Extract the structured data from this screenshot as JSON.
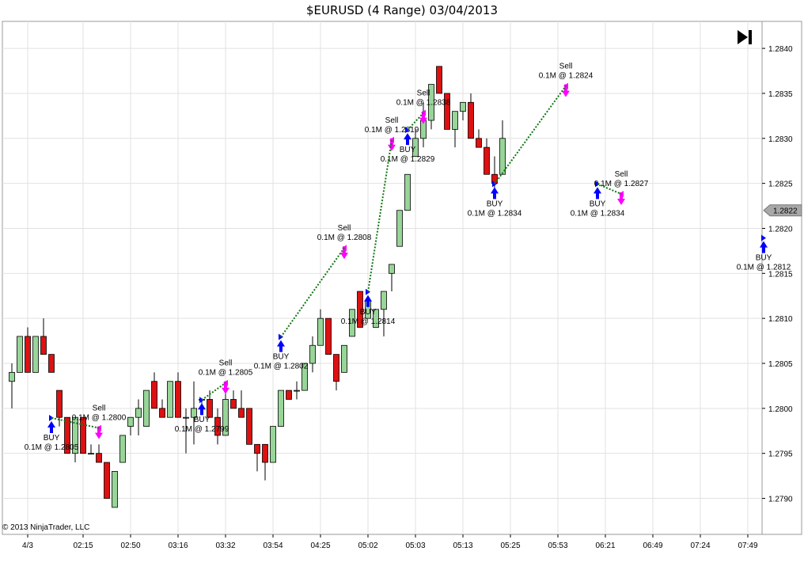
{
  "title": "$EURUSD (4 Range)  03/04/2013",
  "copyright": "© 2013 NinjaTrader, LLC",
  "colors": {
    "up": "#98d598",
    "down": "#dd1111",
    "grid": "#e2e2e2",
    "buy_arrow": "#0000ff",
    "sell_arrow": "#ff00ff",
    "win_line": "#117711",
    "loss_line": "#cc1144"
  },
  "chart_data": {
    "type": "candlestick",
    "symbol": "$EURUSD",
    "bar_type": "4 Range",
    "date": "03/04/2013",
    "ylim": [
      1.2786,
      1.2843
    ],
    "yticks": [
      "1.2840",
      "1.2835",
      "1.2830",
      "1.2825",
      "1.2820",
      "1.2815",
      "1.2810",
      "1.2805",
      "1.2800",
      "1.2795",
      "1.2790"
    ],
    "last_price": "1.2822",
    "x_tick_labels": [
      {
        "bar": 2,
        "label": "4/3"
      },
      {
        "bar": 9,
        "label": "02:15"
      },
      {
        "bar": 15,
        "label": "02:50"
      },
      {
        "bar": 21,
        "label": "03:16"
      },
      {
        "bar": 27,
        "label": "03:32"
      },
      {
        "bar": 33,
        "label": "03:54"
      },
      {
        "bar": 39,
        "label": "04:25"
      },
      {
        "bar": 45,
        "label": "05:02"
      },
      {
        "bar": 51,
        "label": "05:03"
      },
      {
        "bar": 57,
        "label": "05:13"
      },
      {
        "bar": 63,
        "label": "05:25"
      },
      {
        "bar": 69,
        "label": "05:53"
      },
      {
        "bar": 75,
        "label": "06:21"
      },
      {
        "bar": 81,
        "label": "06:49"
      },
      {
        "bar": 87,
        "label": "07:24"
      },
      {
        "bar": 93,
        "label": "07:49"
      }
    ],
    "bars": [
      [
        1.2803,
        1.2805,
        1.28,
        1.2804
      ],
      [
        1.2804,
        1.2808,
        1.2804,
        1.2808
      ],
      [
        1.2808,
        1.2809,
        1.2804,
        1.2804
      ],
      [
        1.2804,
        1.2808,
        1.2804,
        1.2808
      ],
      [
        1.2808,
        1.281,
        1.2806,
        1.2806
      ],
      [
        1.2806,
        1.2806,
        1.2804,
        1.2804
      ],
      [
        1.2802,
        1.2802,
        1.2798,
        1.2799
      ],
      [
        1.2799,
        1.2799,
        1.2795,
        1.2795
      ],
      [
        1.2795,
        1.2799,
        1.2794,
        1.2799
      ],
      [
        1.2799,
        1.2799,
        1.2795,
        1.2795
      ],
      [
        1.2795,
        1.2796,
        1.2795,
        1.2795
      ],
      [
        1.2795,
        1.2796,
        1.2794,
        1.2794
      ],
      [
        1.2794,
        1.2794,
        1.279,
        1.279
      ],
      [
        1.2789,
        1.2793,
        1.2789,
        1.2793
      ],
      [
        1.2794,
        1.2797,
        1.2794,
        1.2797
      ],
      [
        1.2798,
        1.2799,
        1.2797,
        1.2799
      ],
      [
        1.2799,
        1.2801,
        1.2797,
        1.28
      ],
      [
        1.2798,
        1.2802,
        1.2798,
        1.2802
      ],
      [
        1.2803,
        1.2804,
        1.28,
        1.28
      ],
      [
        1.28,
        1.2801,
        1.2799,
        1.2799
      ],
      [
        1.2799,
        1.2803,
        1.2799,
        1.2803
      ],
      [
        1.2803,
        1.2804,
        1.2799,
        1.2799
      ],
      [
        1.2799,
        1.28,
        1.2795,
        1.2799
      ],
      [
        1.2799,
        1.2803,
        1.2796,
        1.28
      ],
      [
        1.2801,
        1.2801,
        1.28,
        1.2801
      ],
      [
        1.2801,
        1.2802,
        1.2799,
        1.2799
      ],
      [
        1.2799,
        1.28,
        1.2796,
        1.2797
      ],
      [
        1.2797,
        1.2802,
        1.2797,
        1.2801
      ],
      [
        1.2801,
        1.2802,
        1.28,
        1.28
      ],
      [
        1.28,
        1.2802,
        1.2799,
        1.2799
      ],
      [
        1.28,
        1.28,
        1.2796,
        1.2796
      ],
      [
        1.2796,
        1.2796,
        1.2793,
        1.2795
      ],
      [
        1.2796,
        1.2796,
        1.2792,
        1.2794
      ],
      [
        1.2794,
        1.2798,
        1.2794,
        1.2798
      ],
      [
        1.2798,
        1.2802,
        1.2798,
        1.2802
      ],
      [
        1.2802,
        1.2802,
        1.2801,
        1.2801
      ],
      [
        1.2802,
        1.2803,
        1.2801,
        1.2802
      ],
      [
        1.2802,
        1.2805,
        1.2802,
        1.2805
      ],
      [
        1.2805,
        1.2808,
        1.2804,
        1.2807
      ],
      [
        1.2807,
        1.2811,
        1.2807,
        1.281
      ],
      [
        1.281,
        1.281,
        1.2806,
        1.2806
      ],
      [
        1.2806,
        1.2806,
        1.2802,
        1.2803
      ],
      [
        1.2804,
        1.2807,
        1.2804,
        1.2807
      ],
      [
        1.2808,
        1.2811,
        1.2808,
        1.2811
      ],
      [
        1.2813,
        1.2813,
        1.2809,
        1.2809
      ],
      [
        1.281,
        1.281,
        1.2812,
        1.2812
      ],
      [
        1.2809,
        1.2809,
        1.281,
        1.2811
      ],
      [
        1.2811,
        1.2811,
        1.2808,
        1.2813
      ],
      [
        1.2815,
        1.2816,
        1.2813,
        1.2816
      ],
      [
        1.2818,
        1.2822,
        1.2818,
        1.2822
      ],
      [
        1.2822,
        1.2826,
        1.2822,
        1.2826
      ],
      [
        1.2828,
        1.2831,
        1.2828,
        1.283
      ],
      [
        1.283,
        1.2834,
        1.2829,
        1.2832
      ],
      [
        1.2832,
        1.2836,
        1.2831,
        1.2836
      ],
      [
        1.2838,
        1.2838,
        1.2835,
        1.2835
      ],
      [
        1.2835,
        1.2835,
        1.2831,
        1.2831
      ],
      [
        1.2831,
        1.2833,
        1.2829,
        1.2833
      ],
      [
        1.2833,
        1.2834,
        1.2832,
        1.2834
      ],
      [
        1.2834,
        1.2835,
        1.283,
        1.283
      ],
      [
        1.283,
        1.2831,
        1.2829,
        1.2829
      ],
      [
        1.2829,
        1.283,
        1.2826,
        1.2826
      ],
      [
        1.2826,
        1.2828,
        1.2824,
        1.2825
      ],
      [
        1.2826,
        1.2832,
        1.2826,
        1.283
      ]
    ],
    "trades": [
      {
        "side": "BUY",
        "text": "BUY",
        "detail": "0.1M @ 1.2805",
        "bar": 5,
        "price": 1.2797
      },
      {
        "side": "SELL",
        "text": "Sell",
        "detail": "0.1M @ 1.2800",
        "bar": 11,
        "price": 1.2798
      },
      {
        "side": "BUY",
        "text": "BUY",
        "detail": "0.1M @ 1.2799",
        "bar": 24,
        "price": 1.2799
      },
      {
        "side": "SELL",
        "text": "Sell",
        "detail": "0.1M @ 1.2805",
        "bar": 27,
        "price": 1.2803
      },
      {
        "side": "BUY",
        "text": "BUY",
        "detail": "0.1M @ 1.2802",
        "bar": 34,
        "price": 1.2806
      },
      {
        "side": "SELL",
        "text": "Sell",
        "detail": "0.1M @ 1.2808",
        "bar": 42,
        "price": 1.2818
      },
      {
        "side": "BUY",
        "text": "BUY",
        "detail": "0.1M @ 1.2814",
        "bar": 45,
        "price": 1.2811
      },
      {
        "side": "SELL",
        "text": "Sell",
        "detail": "0.1M @ 1.2819",
        "bar": 48,
        "price": 1.283
      },
      {
        "side": "BUY",
        "text": "BUY",
        "detail": "0.1M @ 1.2829",
        "bar": 50,
        "price": 1.2829
      },
      {
        "side": "SELL",
        "text": "Sell",
        "detail": "0.1M @ 1.2838",
        "bar": 52,
        "price": 1.2833
      },
      {
        "side": "BUY",
        "text": "BUY",
        "detail": "0.1M @ 1.2834",
        "bar": 61,
        "price": 1.2823
      },
      {
        "side": "SELL",
        "text": "Sell",
        "detail": "0.1M @ 1.2824",
        "bar": 70,
        "price": 1.2836
      },
      {
        "side": "BUY",
        "text": "BUY",
        "detail": "0.1M @ 1.2834",
        "bar": 74,
        "price": 1.2823
      },
      {
        "side": "SELL",
        "text": "Sell",
        "detail": "0.1M @ 1.2827",
        "bar": 77,
        "price": 1.2824
      },
      {
        "side": "BUY",
        "text": "BUY",
        "detail": "0.1M @ 1.2812",
        "bar": 95,
        "price": 1.2817
      }
    ]
  }
}
